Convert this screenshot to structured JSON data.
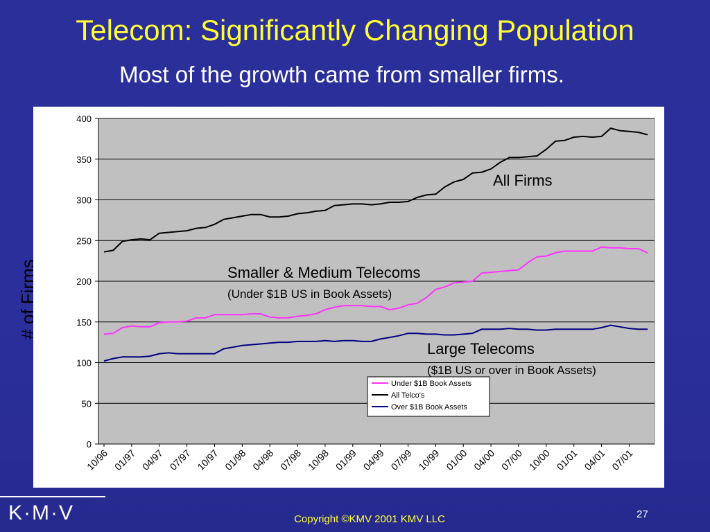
{
  "slide": {
    "title": "Telecom: Significantly Changing Population",
    "subtitle": "Most of the growth came from smaller firms.",
    "logo": "K·M·V",
    "copyright": "Copyright ©KMV 2001 KMV LLC",
    "page_number": "27"
  },
  "chart_data": {
    "type": "line",
    "ylabel": "# of Firms",
    "ylim": [
      0,
      400
    ],
    "yticks": [
      "0",
      "50",
      "100",
      "150",
      "200",
      "250",
      "300",
      "350",
      "400"
    ],
    "xtick_labels": [
      "10/96",
      "01/97",
      "04/97",
      "07/97",
      "10/97",
      "01/98",
      "04/98",
      "07/98",
      "10/98",
      "01/99",
      "04/99",
      "07/99",
      "10/99",
      "01/00",
      "04/00",
      "07/00",
      "10/00",
      "01/01",
      "04/01",
      "07/01"
    ],
    "x": [
      "10/96",
      "11/96",
      "12/96",
      "01/97",
      "02/97",
      "03/97",
      "04/97",
      "05/97",
      "06/97",
      "07/97",
      "08/97",
      "09/97",
      "10/97",
      "11/97",
      "12/97",
      "01/98",
      "02/98",
      "03/98",
      "04/98",
      "05/98",
      "06/98",
      "07/98",
      "08/98",
      "09/98",
      "10/98",
      "11/98",
      "12/98",
      "01/99",
      "02/99",
      "03/99",
      "04/99",
      "05/99",
      "06/99",
      "07/99",
      "08/99",
      "09/99",
      "10/99",
      "11/99",
      "12/99",
      "01/00",
      "02/00",
      "03/00",
      "04/00",
      "05/00",
      "06/00",
      "07/00",
      "08/00",
      "09/00",
      "10/00",
      "11/00",
      "12/00",
      "01/01",
      "02/01",
      "03/01",
      "04/01",
      "05/01",
      "06/01",
      "07/01",
      "08/01",
      "09/01"
    ],
    "grid": true,
    "legend_position": "bottom-center",
    "annotations": {
      "all": "All Firms",
      "small_title": "Smaller & Medium Telecoms",
      "small_sub": "(Under $1B US in Book Assets)",
      "large_title": "Large Telecoms",
      "large_sub": "($1B  US or over in Book Assets)"
    },
    "series": [
      {
        "name": "Under $1B Book Assets",
        "color": "#ff33ff",
        "values": [
          135,
          136,
          143,
          145,
          144,
          144,
          149,
          150,
          150,
          151,
          155,
          155,
          159,
          159,
          159,
          159,
          160,
          160,
          156,
          155,
          155,
          157,
          158,
          160,
          165,
          168,
          170,
          170,
          170,
          169,
          169,
          165,
          167,
          171,
          173,
          180,
          190,
          193,
          198,
          199,
          200,
          210,
          211,
          212,
          213,
          214,
          223,
          230,
          231,
          235,
          237,
          237,
          237,
          237,
          242,
          241,
          241,
          240,
          240,
          235
        ]
      },
      {
        "name": "All Telco's",
        "color": "#000000",
        "values": [
          236,
          238,
          249,
          251,
          252,
          251,
          259,
          260,
          261,
          262,
          265,
          266,
          270,
          276,
          278,
          280,
          282,
          282,
          279,
          279,
          280,
          283,
          284,
          286,
          287,
          293,
          294,
          295,
          295,
          294,
          295,
          297,
          297,
          298,
          303,
          306,
          307,
          316,
          322,
          325,
          333,
          334,
          338,
          346,
          352,
          352,
          353,
          354,
          362,
          372,
          373,
          377,
          378,
          377,
          378,
          388,
          385,
          384,
          383,
          380
        ]
      },
      {
        "name": "Over $1B Book Assets",
        "color": "#000080",
        "values": [
          102,
          105,
          107,
          107,
          107,
          108,
          111,
          112,
          111,
          111,
          111,
          111,
          111,
          117,
          119,
          121,
          122,
          123,
          124,
          125,
          125,
          126,
          126,
          126,
          127,
          126,
          127,
          127,
          126,
          126,
          129,
          131,
          133,
          136,
          136,
          135,
          135,
          134,
          134,
          135,
          136,
          141,
          141,
          141,
          142,
          141,
          141,
          140,
          140,
          141,
          141,
          141,
          141,
          141,
          143,
          146,
          144,
          142,
          141,
          141
        ]
      }
    ]
  }
}
